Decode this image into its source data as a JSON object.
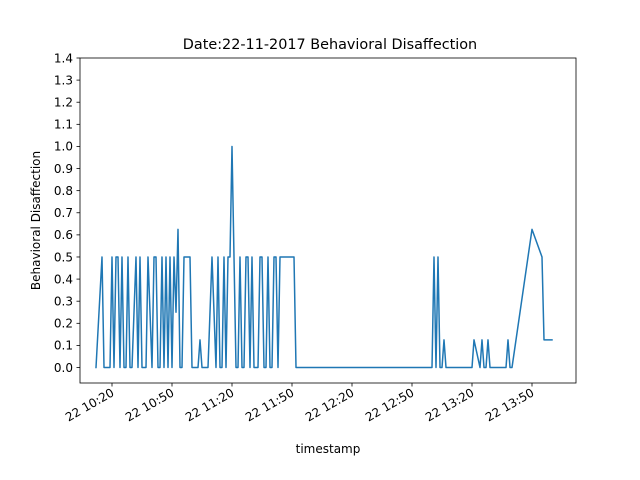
{
  "chart_data": {
    "type": "line",
    "title": "Date:22-11-2017 Behavioral Disaffection",
    "xlabel": "timestamp",
    "ylabel": "Behavioral Disaffection",
    "ylim": [
      -0.07,
      1.4
    ],
    "xlim": [
      "2017-11-22 10:04",
      "2017-11-22 14:12"
    ],
    "grid": false,
    "yticks": [
      "0.0",
      "0.1",
      "0.2",
      "0.3",
      "0.4",
      "0.5",
      "0.6",
      "0.7",
      "0.8",
      "0.9",
      "1.0",
      "1.1",
      "1.2",
      "1.3",
      "1.4"
    ],
    "xticks": [
      {
        "value": "2017-11-22 10:20",
        "label": "22 10:20"
      },
      {
        "value": "2017-11-22 10:50",
        "label": "22 10:50"
      },
      {
        "value": "2017-11-22 11:20",
        "label": "22 11:20"
      },
      {
        "value": "2017-11-22 11:50",
        "label": "22 11:50"
      },
      {
        "value": "2017-11-22 12:20",
        "label": "22 12:20"
      },
      {
        "value": "2017-11-22 12:50",
        "label": "22 12:50"
      },
      {
        "value": "2017-11-22 13:20",
        "label": "22 13:20"
      },
      {
        "value": "2017-11-22 13:50",
        "label": "22 13:50"
      }
    ],
    "color": "#1f77b4",
    "series": [
      {
        "x": [
          "10:12",
          "10:15",
          "10:16",
          "10:17",
          "10:18",
          "10:19",
          "10:20",
          "10:21",
          "10:22",
          "10:23",
          "10:24",
          "10:25",
          "10:26",
          "10:27",
          "10:28",
          "10:29",
          "10:30",
          "10:31",
          "10:32",
          "10:33",
          "10:34",
          "10:35",
          "10:36",
          "10:37",
          "10:38",
          "10:40",
          "10:41",
          "10:42",
          "10:43",
          "10:44",
          "10:45",
          "10:46",
          "10:47",
          "10:48",
          "10:49",
          "10:50",
          "10:51",
          "10:52",
          "10:53",
          "10:54",
          "10:55",
          "10:56",
          "10:57",
          "10:58",
          "10:59",
          "11:00",
          "11:01",
          "11:02",
          "11:03",
          "11:04",
          "11:05",
          "11:08",
          "11:10",
          "11:12",
          "11:13",
          "11:14",
          "11:15",
          "11:16",
          "11:17",
          "11:18",
          "11:19",
          "11:20",
          "11:21",
          "11:22",
          "11:23",
          "11:24",
          "11:25",
          "11:26",
          "11:27",
          "11:28",
          "11:29",
          "11:30",
          "11:31",
          "11:32",
          "11:33",
          "11:34",
          "11:35",
          "11:36",
          "11:37",
          "11:38",
          "11:39",
          "11:40",
          "11:41",
          "11:42",
          "11:43",
          "11:44",
          "11:45",
          "11:46",
          "11:47",
          "11:48",
          "11:49",
          "11:50",
          "11:51",
          "11:52",
          "11:53",
          "11:54",
          "11:55",
          "11:56",
          "12:06",
          "12:12",
          "12:20",
          "12:50",
          "13:00",
          "13:01",
          "13:02",
          "13:03",
          "13:04",
          "13:05",
          "13:06",
          "13:07",
          "13:08",
          "13:20",
          "13:21",
          "13:24",
          "13:25",
          "13:26",
          "13:27",
          "13:28",
          "13:29",
          "13:30",
          "13:33",
          "13:36",
          "13:37",
          "13:38",
          "13:39",
          "13:40",
          "13:50",
          "13:55",
          "13:56",
          "14:00"
        ],
        "y": [
          0.0,
          0.5,
          0.0,
          0.0,
          0.0,
          0.0,
          0.5,
          0.0,
          0.5,
          0.5,
          0.0,
          0.5,
          0.0,
          0.0,
          0.5,
          0.0,
          0.0,
          0.25,
          0.5,
          0.0,
          0.5,
          0.0,
          0.0,
          0.0,
          0.5,
          0.0,
          0.5,
          0.5,
          0.0,
          0.0,
          0.5,
          0.0,
          0.5,
          0.0,
          0.5,
          0.0,
          0.5,
          0.25,
          0.625,
          0.0,
          0.0,
          0.5,
          0.5,
          0.5,
          0.5,
          0.0,
          0.0,
          0.0,
          0.0,
          0.125,
          0.0,
          0.0,
          0.5,
          0.0,
          0.5,
          0.0,
          0.0,
          0.5,
          0.0,
          0.5,
          0.5,
          1.0,
          0.5,
          0.0,
          0.0,
          0.5,
          0.0,
          0.0,
          0.5,
          0.5,
          0.0,
          0.5,
          0.0,
          0.0,
          0.0,
          0.5,
          0.5,
          0.0,
          0.0,
          0.5,
          0.0,
          0.0,
          0.5,
          0.5,
          0.0,
          0.5,
          0.5,
          0.5,
          0.5,
          0.5,
          0.5,
          0.5,
          0.5,
          0.0,
          0.0,
          0.0,
          0.0,
          0.0,
          0.0,
          0.0,
          0.0,
          0.0,
          0.0,
          0.5,
          0.0,
          0.5,
          0.0,
          0.0,
          0.125,
          0.0,
          0.0,
          0.0,
          0.125,
          0.0,
          0.125,
          0.0,
          0.0,
          0.125,
          0.0,
          0.0,
          0.0,
          0.0,
          0.0,
          0.125,
          0.0,
          0.0,
          0.625,
          0.5,
          0.125,
          0.125
        ]
      }
    ]
  }
}
